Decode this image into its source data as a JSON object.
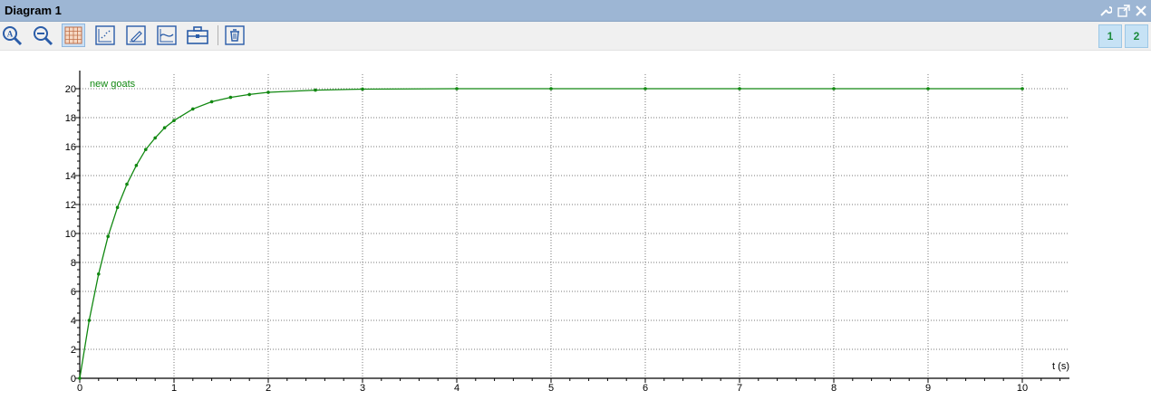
{
  "window": {
    "title": "Diagram 1"
  },
  "toolbar": {
    "buttons": [
      "zoom-in-icon",
      "zoom-out-icon",
      "grid-icon",
      "scatter-plot-icon",
      "edit-icon",
      "curve-icon",
      "toolbox-icon",
      "trash-icon"
    ],
    "pages": [
      "1",
      "2"
    ]
  },
  "colors": {
    "series": "#118811",
    "titlebar": "#9db6d4"
  },
  "chart_data": {
    "type": "line",
    "xlabel": "t (s)",
    "ylabel": "",
    "xlim": [
      0,
      10.5
    ],
    "ylim": [
      0,
      21
    ],
    "xticks": [
      0,
      1,
      2,
      3,
      4,
      5,
      6,
      7,
      8,
      9,
      10
    ],
    "yticks": [
      0,
      2,
      4,
      6,
      8,
      10,
      12,
      14,
      16,
      18,
      20
    ],
    "grid": true,
    "series": [
      {
        "name": "new goats",
        "x": [
          0,
          0.1,
          0.2,
          0.3,
          0.4,
          0.5,
          0.6,
          0.7,
          0.8,
          0.9,
          1.0,
          1.2,
          1.4,
          1.6,
          1.8,
          2.0,
          2.5,
          3.0,
          4.0,
          5.0,
          6.0,
          7.0,
          8.0,
          9.0,
          10.0
        ],
        "y": [
          0,
          4.0,
          7.2,
          9.8,
          11.8,
          13.4,
          14.7,
          15.8,
          16.6,
          17.3,
          17.8,
          18.6,
          19.1,
          19.4,
          19.6,
          19.75,
          19.9,
          19.97,
          20.0,
          20.0,
          20.0,
          20.0,
          20.0,
          20.0,
          20.0
        ]
      }
    ]
  }
}
